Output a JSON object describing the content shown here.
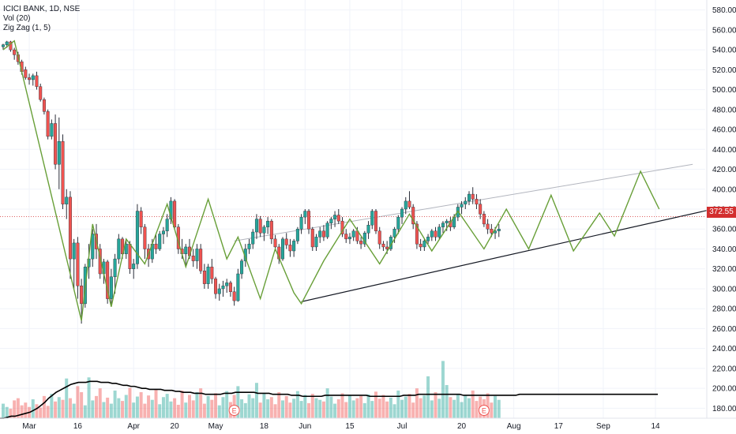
{
  "legend": {
    "symbol": "ICICI BANK, 1D, NSE",
    "vol": "Vol (20)",
    "zigzag": "Zig Zag (1, 5)"
  },
  "last_price_label": "372.55",
  "colors": {
    "up": "#26a69a",
    "down": "#ef5350",
    "zigzag": "#689f38",
    "vol_ma": "#000000",
    "trendline": "#000000",
    "upper_line": "#b2b5be",
    "last_price": "#d32f2f"
  },
  "chart_data": {
    "type": "candlestick",
    "y_axis": {
      "min": 170,
      "max": 590,
      "ticks": [
        180,
        200,
        220,
        240,
        260,
        280,
        300,
        320,
        340,
        360,
        380,
        400,
        420,
        440,
        460,
        480,
        500,
        520,
        540,
        560,
        580
      ],
      "tick_labels": [
        "180.00",
        "200.00",
        "220.00",
        "240.00",
        "260.00",
        "280.00",
        "300.00",
        "320.00",
        "340.00",
        "360.00",
        "380.00",
        "400.00",
        "420.00",
        "440.00",
        "460.00",
        "480.00",
        "500.00",
        "520.00",
        "540.00",
        "560.00",
        "580.00"
      ]
    },
    "x_axis": {
      "tick_labels": [
        "Mar",
        "16",
        "Apr",
        "20",
        "May",
        "18",
        "Jun",
        "15",
        "Jul",
        "20",
        "Aug",
        "17",
        "Sep",
        "14"
      ],
      "tick_index": [
        7,
        20,
        35,
        46,
        57,
        70,
        81,
        93,
        107,
        123,
        137,
        149,
        161,
        175
      ]
    },
    "last_price": 372.55,
    "earnings_markers": [
      "E",
      "E"
    ],
    "earnings_index": [
      62,
      129
    ],
    "candles": [
      [
        543,
        546,
        540,
        545
      ],
      [
        545,
        549,
        542,
        548
      ],
      [
        548,
        549,
        538,
        540
      ],
      [
        540,
        542,
        530,
        535
      ],
      [
        535,
        538,
        525,
        528
      ],
      [
        528,
        530,
        515,
        518
      ],
      [
        520,
        523,
        510,
        512
      ],
      [
        512,
        516,
        505,
        510
      ],
      [
        510,
        516,
        504,
        514
      ],
      [
        514,
        518,
        500,
        503
      ],
      [
        503,
        506,
        488,
        490
      ],
      [
        490,
        492,
        475,
        478
      ],
      [
        478,
        480,
        450,
        453
      ],
      [
        453,
        470,
        450,
        466
      ],
      [
        466,
        475,
        420,
        425
      ],
      [
        425,
        472,
        400,
        448
      ],
      [
        448,
        455,
        380,
        385
      ],
      [
        385,
        400,
        370,
        392
      ],
      [
        392,
        398,
        310,
        330
      ],
      [
        330,
        350,
        300,
        346
      ],
      [
        346,
        352,
        290,
        303
      ],
      [
        303,
        310,
        265,
        285
      ],
      [
        285,
        325,
        281,
        322
      ],
      [
        322,
        345,
        310,
        330
      ],
      [
        330,
        360,
        322,
        355
      ],
      [
        355,
        365,
        330,
        340
      ],
      [
        340,
        345,
        310,
        315
      ],
      [
        315,
        330,
        305,
        327
      ],
      [
        327,
        329,
        285,
        290
      ],
      [
        290,
        320,
        283,
        312
      ],
      [
        312,
        335,
        295,
        330
      ],
      [
        330,
        355,
        325,
        350
      ],
      [
        350,
        352,
        330,
        335
      ],
      [
        335,
        350,
        330,
        345
      ],
      [
        345,
        348,
        315,
        320
      ],
      [
        320,
        330,
        310,
        325
      ],
      [
        325,
        385,
        320,
        378
      ],
      [
        378,
        382,
        355,
        362
      ],
      [
        362,
        365,
        330,
        340
      ],
      [
        340,
        345,
        322,
        330
      ],
      [
        330,
        350,
        326,
        345
      ],
      [
        345,
        355,
        335,
        340
      ],
      [
        340,
        358,
        338,
        355
      ],
      [
        355,
        362,
        345,
        358
      ],
      [
        358,
        375,
        352,
        370
      ],
      [
        370,
        392,
        365,
        388
      ],
      [
        388,
        390,
        360,
        362
      ],
      [
        362,
        365,
        335,
        340
      ],
      [
        340,
        350,
        330,
        335
      ],
      [
        335,
        345,
        322,
        342
      ],
      [
        342,
        350,
        330,
        333
      ],
      [
        333,
        340,
        322,
        328
      ],
      [
        328,
        345,
        320,
        340
      ],
      [
        340,
        345,
        315,
        318
      ],
      [
        318,
        325,
        300,
        305
      ],
      [
        305,
        325,
        300,
        322
      ],
      [
        322,
        330,
        305,
        310
      ],
      [
        310,
        312,
        290,
        295
      ],
      [
        295,
        305,
        288,
        300
      ],
      [
        300,
        308,
        292,
        303
      ],
      [
        303,
        310,
        296,
        306
      ],
      [
        306,
        308,
        292,
        297
      ],
      [
        297,
        302,
        283,
        288
      ],
      [
        288,
        320,
        287,
        315
      ],
      [
        315,
        330,
        310,
        328
      ],
      [
        328,
        345,
        322,
        340
      ],
      [
        340,
        350,
        335,
        345
      ],
      [
        345,
        360,
        340,
        357
      ],
      [
        357,
        375,
        350,
        370
      ],
      [
        370,
        373,
        352,
        356
      ],
      [
        356,
        364,
        348,
        362
      ],
      [
        362,
        372,
        355,
        368
      ],
      [
        368,
        370,
        345,
        350
      ],
      [
        350,
        354,
        338,
        342
      ],
      [
        342,
        345,
        325,
        330
      ],
      [
        330,
        352,
        328,
        350
      ],
      [
        350,
        356,
        340,
        344
      ],
      [
        344,
        350,
        332,
        338
      ],
      [
        338,
        350,
        332,
        348
      ],
      [
        348,
        362,
        345,
        360
      ],
      [
        360,
        375,
        355,
        372
      ],
      [
        372,
        380,
        365,
        378
      ],
      [
        378,
        380,
        355,
        360
      ],
      [
        360,
        362,
        338,
        342
      ],
      [
        342,
        355,
        338,
        352
      ],
      [
        352,
        362,
        346,
        358
      ],
      [
        358,
        364,
        348,
        352
      ],
      [
        352,
        368,
        350,
        366
      ],
      [
        366,
        372,
        360,
        370
      ],
      [
        370,
        378,
        362,
        374
      ],
      [
        374,
        380,
        365,
        368
      ],
      [
        368,
        372,
        352,
        355
      ],
      [
        355,
        360,
        346,
        350
      ],
      [
        350,
        356,
        345,
        352
      ],
      [
        352,
        360,
        348,
        358
      ],
      [
        358,
        362,
        345,
        348
      ],
      [
        348,
        352,
        340,
        345
      ],
      [
        345,
        358,
        342,
        356
      ],
      [
        356,
        368,
        350,
        364
      ],
      [
        364,
        380,
        360,
        378
      ],
      [
        378,
        380,
        355,
        358
      ],
      [
        358,
        362,
        340,
        345
      ],
      [
        345,
        348,
        338,
        342
      ],
      [
        342,
        348,
        335,
        340
      ],
      [
        340,
        354,
        338,
        352
      ],
      [
        352,
        362,
        346,
        360
      ],
      [
        360,
        374,
        355,
        372
      ],
      [
        372,
        382,
        365,
        380
      ],
      [
        380,
        392,
        375,
        388
      ],
      [
        388,
        398,
        380,
        382
      ],
      [
        382,
        385,
        360,
        365
      ],
      [
        365,
        368,
        340,
        345
      ],
      [
        345,
        350,
        338,
        342
      ],
      [
        342,
        350,
        338,
        348
      ],
      [
        348,
        355,
        345,
        352
      ],
      [
        352,
        360,
        348,
        358
      ],
      [
        358,
        362,
        348,
        352
      ],
      [
        352,
        365,
        350,
        362
      ],
      [
        362,
        368,
        356,
        366
      ],
      [
        366,
        370,
        358,
        368
      ],
      [
        368,
        372,
        358,
        362
      ],
      [
        362,
        375,
        360,
        372
      ],
      [
        372,
        385,
        368,
        382
      ],
      [
        382,
        388,
        375,
        385
      ],
      [
        385,
        392,
        380,
        388
      ],
      [
        388,
        398,
        384,
        395
      ],
      [
        395,
        402,
        385,
        390
      ],
      [
        390,
        395,
        380,
        385
      ],
      [
        385,
        390,
        370,
        375
      ],
      [
        375,
        378,
        362,
        365
      ],
      [
        365,
        370,
        355,
        360
      ],
      [
        360,
        365,
        352,
        356
      ],
      [
        356,
        362,
        350,
        358
      ],
      [
        358,
        365,
        352,
        360
      ]
    ],
    "zigzag_points": [
      [
        0,
        540
      ],
      [
        3,
        549
      ],
      [
        21,
        268
      ],
      [
        24,
        365
      ],
      [
        29,
        282
      ],
      [
        33,
        350
      ],
      [
        38,
        325
      ],
      [
        44,
        385
      ],
      [
        49,
        322
      ],
      [
        55,
        390
      ],
      [
        60,
        330
      ],
      [
        63,
        352
      ],
      [
        69,
        290
      ],
      [
        73,
        340
      ],
      [
        78,
        296
      ],
      [
        80,
        285
      ],
      [
        86,
        328
      ],
      [
        93,
        370
      ],
      [
        101,
        325
      ],
      [
        109,
        375
      ],
      [
        115,
        338
      ],
      [
        122,
        378
      ],
      [
        129,
        340
      ],
      [
        135,
        380
      ],
      [
        141,
        340
      ],
      [
        147,
        394
      ],
      [
        153,
        338
      ],
      [
        160,
        376
      ],
      [
        164,
        353
      ],
      [
        171,
        418
      ],
      [
        176,
        380
      ]
    ],
    "trendline": [
      [
        80,
        287
      ],
      [
        188,
        378
      ]
    ],
    "upper_line": [
      [
        62,
        348
      ],
      [
        185,
        425
      ]
    ],
    "volume": {
      "ma_label": "Vol (20)",
      "ma": [
        170,
        170,
        171,
        172,
        172,
        173,
        174,
        175,
        176,
        178,
        180,
        183,
        186,
        190,
        193,
        196,
        198,
        200,
        202,
        204,
        205,
        206,
        206,
        206,
        207,
        207,
        207,
        206,
        206,
        206,
        205,
        205,
        204,
        203,
        203,
        202,
        202,
        201,
        200,
        200,
        199,
        199,
        199,
        199,
        198,
        198,
        198,
        197,
        197,
        196,
        196,
        196,
        195,
        195,
        195,
        194,
        194,
        194,
        194,
        194,
        195,
        195,
        195,
        196,
        196,
        196,
        196,
        196,
        196,
        195,
        195,
        195,
        195,
        194,
        194,
        194,
        194,
        194,
        193,
        193,
        193,
        192,
        192,
        192,
        192,
        192,
        192,
        193,
        193,
        193,
        193,
        193,
        193,
        193,
        193,
        193,
        193,
        193,
        193,
        192,
        192,
        192,
        192,
        192,
        192,
        192,
        192,
        192,
        193,
        193,
        193,
        193,
        194,
        194,
        194,
        194,
        194,
        194,
        194,
        194,
        194,
        194,
        194,
        194,
        193,
        193,
        193,
        193,
        193,
        193,
        193,
        193,
        193,
        193,
        193,
        193,
        193,
        193,
        193,
        194,
        194,
        194,
        194,
        194,
        194,
        194,
        194,
        194,
        194,
        194,
        194,
        194,
        194,
        194,
        194,
        194,
        194,
        194,
        194,
        194,
        194,
        194,
        194,
        194,
        194,
        194,
        194,
        194,
        194,
        194,
        194,
        194,
        194,
        194,
        194,
        194,
        194
      ]
    }
  }
}
